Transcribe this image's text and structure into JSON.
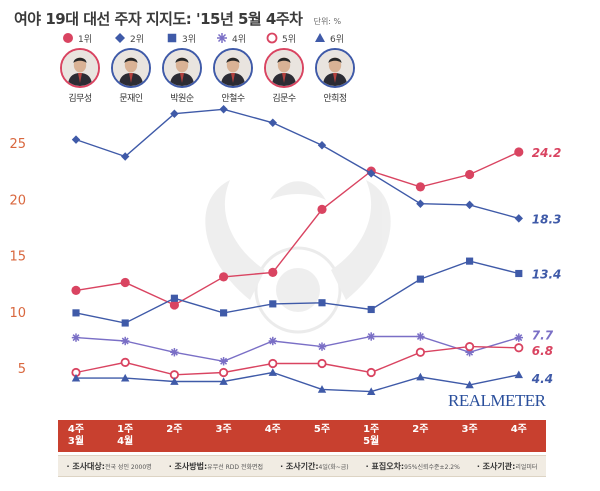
{
  "title": "여야 19대 대선 주자 지지도: '15년 5월 4주차",
  "unit": "단위: %",
  "brand": "REALMETER",
  "legend": [
    {
      "label": "1위",
      "marker": "circle",
      "color": "#d94461"
    },
    {
      "label": "2위",
      "marker": "diamond",
      "color": "#3f5aa8"
    },
    {
      "label": "3위",
      "marker": "square",
      "color": "#3f5aa8"
    },
    {
      "label": "4위",
      "marker": "asterisk",
      "color": "#7a6fc6"
    },
    {
      "label": "5위",
      "marker": "ring",
      "color": "#d94461"
    },
    {
      "label": "6위",
      "marker": "triangle",
      "color": "#3f5aa8"
    }
  ],
  "people": [
    {
      "name": "김무성",
      "border": "#d94461"
    },
    {
      "name": "문재인",
      "border": "#3f5aa8"
    },
    {
      "name": "박원순",
      "border": "#3f5aa8"
    },
    {
      "name": "안철수",
      "border": "#3f5aa8"
    },
    {
      "name": "김문수",
      "border": "#d94461"
    },
    {
      "name": "안희정",
      "border": "#3f5aa8"
    }
  ],
  "x_labels": [
    {
      "week": "4주",
      "month": "3월"
    },
    {
      "week": "1주",
      "month": "4월"
    },
    {
      "week": "2주",
      "month": ""
    },
    {
      "week": "3주",
      "month": ""
    },
    {
      "week": "4주",
      "month": ""
    },
    {
      "week": "5주",
      "month": ""
    },
    {
      "week": "1주",
      "month": "5월"
    },
    {
      "week": "2주",
      "month": ""
    },
    {
      "week": "3주",
      "month": ""
    },
    {
      "week": "4주",
      "month": ""
    }
  ],
  "footnote": [
    {
      "key": "조사대상:",
      "value": "전국 성인 2000명"
    },
    {
      "key": "조사방법:",
      "value": "유무선 RDD 전화면접"
    },
    {
      "key": "조사기간:",
      "value": "4일(화~금)"
    },
    {
      "key": "표집오차:",
      "value": "95%신뢰수준±2.2%"
    },
    {
      "key": "조사기관:",
      "value": "리얼미터"
    }
  ],
  "chart_data": {
    "type": "line",
    "categories": [
      "3월 4주",
      "4월 1주",
      "2주",
      "3주",
      "4주",
      "5주",
      "5월 1주",
      "2주",
      "3주",
      "4주"
    ],
    "yticks": [
      5,
      10,
      15,
      20,
      25
    ],
    "ylim": [
      1,
      28
    ],
    "series": [
      {
        "name": "1위",
        "marker": "circle",
        "color": "#d94461",
        "values": [
          11.9,
          12.6,
          10.6,
          13.1,
          13.5,
          19.1,
          22.5,
          21.1,
          22.2,
          24.2
        ],
        "end_label": "24.2"
      },
      {
        "name": "2위",
        "marker": "diamond",
        "color": "#3f5aa8",
        "values": [
          25.3,
          23.8,
          27.6,
          28.0,
          26.8,
          24.8,
          22.3,
          19.6,
          19.5,
          18.3
        ],
        "end_label": "18.3"
      },
      {
        "name": "3위",
        "marker": "square",
        "color": "#3f5aa8",
        "values": [
          9.9,
          9.0,
          11.2,
          9.9,
          10.7,
          10.8,
          10.2,
          12.9,
          14.5,
          13.4
        ],
        "end_label": "13.4"
      },
      {
        "name": "4위",
        "marker": "asterisk",
        "color": "#7a6fc6",
        "values": [
          7.7,
          7.4,
          6.4,
          5.6,
          7.4,
          6.9,
          7.8,
          7.8,
          6.4,
          7.7
        ],
        "end_label": "7.7"
      },
      {
        "name": "5위",
        "marker": "ring",
        "color": "#d94461",
        "values": [
          4.6,
          5.5,
          4.4,
          4.6,
          5.4,
          5.4,
          4.6,
          6.4,
          6.9,
          6.8
        ],
        "end_label": "6.8"
      },
      {
        "name": "6위",
        "marker": "triangle",
        "color": "#3f5aa8",
        "values": [
          4.1,
          4.1,
          3.8,
          3.8,
          4.6,
          3.1,
          2.9,
          4.2,
          3.5,
          4.4
        ],
        "end_label": "4.4"
      }
    ]
  }
}
